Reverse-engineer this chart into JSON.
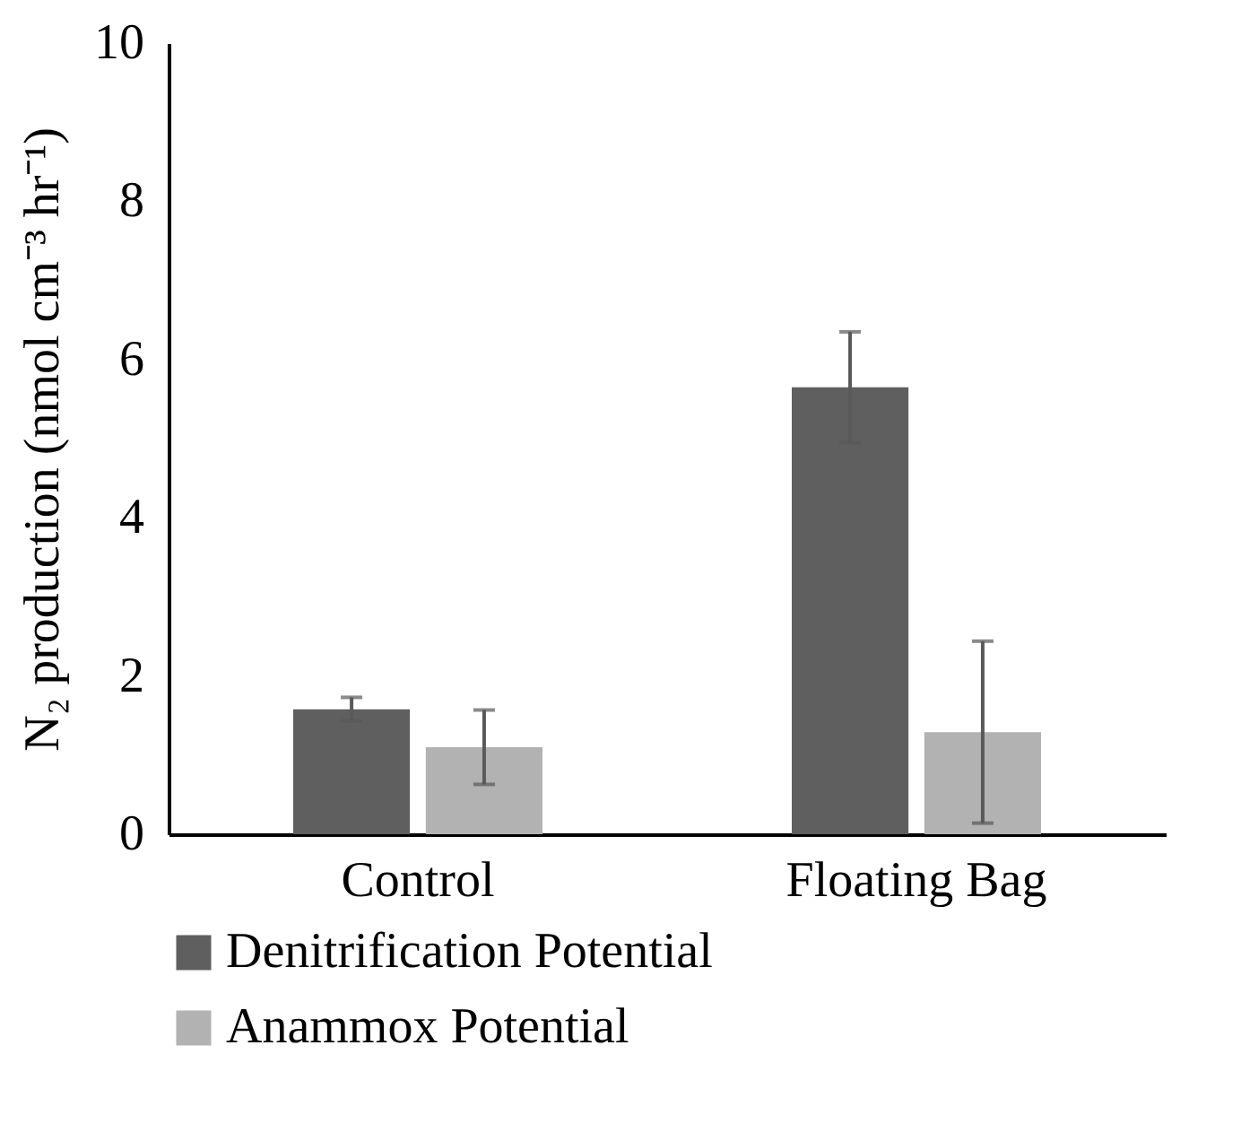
{
  "chart_data": {
    "type": "bar",
    "ylabel": "N₂ production (nmol cm⁻³ hr⁻¹)",
    "categories": [
      "Control",
      "Floating Bag"
    ],
    "series": [
      {
        "name": "Denitrification Potential",
        "color": "#5f5f5f",
        "values": [
          1.58,
          5.65
        ],
        "errors": [
          0.15,
          0.7
        ]
      },
      {
        "name": "Anammox Potential",
        "color": "#b2b2b2",
        "values": [
          1.1,
          1.29
        ],
        "errors": [
          0.47,
          1.15
        ]
      }
    ],
    "ylim": [
      0,
      10
    ],
    "yticks": [
      0,
      2,
      4,
      6,
      8,
      10
    ],
    "grid": false,
    "legend": "bottom"
  }
}
